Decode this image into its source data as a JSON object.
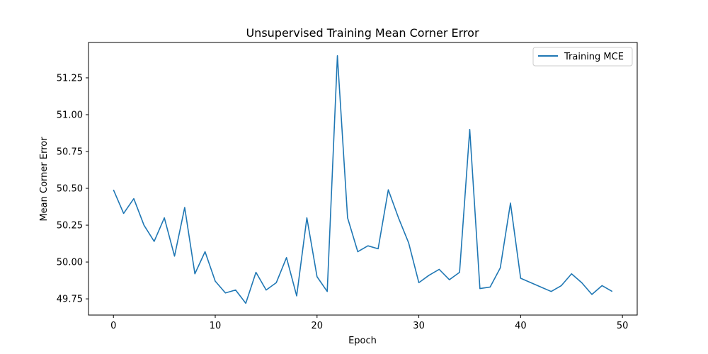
{
  "chart_data": {
    "type": "line",
    "title": "Unsupervised Training Mean Corner Error",
    "xlabel": "Epoch",
    "ylabel": "Mean Corner Error",
    "xlim": [
      -2.45,
      51.45
    ],
    "ylim": [
      49.64,
      51.49
    ],
    "xticks": [
      0,
      10,
      20,
      30,
      40,
      50
    ],
    "yticks": [
      49.75,
      50.0,
      50.25,
      50.5,
      50.75,
      51.0,
      51.25
    ],
    "ytick_labels": [
      "49.75",
      "50.00",
      "50.25",
      "50.50",
      "50.75",
      "51.00",
      "51.25"
    ],
    "grid": false,
    "legend_position": "top-right",
    "series": [
      {
        "name": "Training MCE",
        "color": "#1f77b4",
        "x": [
          0,
          1,
          2,
          3,
          4,
          5,
          6,
          7,
          8,
          9,
          10,
          11,
          12,
          13,
          14,
          15,
          16,
          17,
          18,
          19,
          20,
          21,
          22,
          23,
          24,
          25,
          26,
          27,
          28,
          29,
          30,
          31,
          32,
          33,
          34,
          35,
          36,
          37,
          38,
          39,
          40,
          41,
          42,
          43,
          44,
          45,
          46,
          47,
          48,
          49
        ],
        "values": [
          50.49,
          50.33,
          50.43,
          50.25,
          50.14,
          50.3,
          50.04,
          50.37,
          49.92,
          50.07,
          49.87,
          49.79,
          49.81,
          49.72,
          49.93,
          49.81,
          49.86,
          50.03,
          49.77,
          50.3,
          49.9,
          49.8,
          51.4,
          50.3,
          50.07,
          50.11,
          50.09,
          50.49,
          50.3,
          50.13,
          49.86,
          49.91,
          49.95,
          49.88,
          49.93,
          50.9,
          49.82,
          49.83,
          49.96,
          50.4,
          49.89,
          49.86,
          49.83,
          49.8,
          49.84,
          49.92,
          49.86,
          49.78,
          49.84,
          49.8
        ]
      }
    ]
  }
}
